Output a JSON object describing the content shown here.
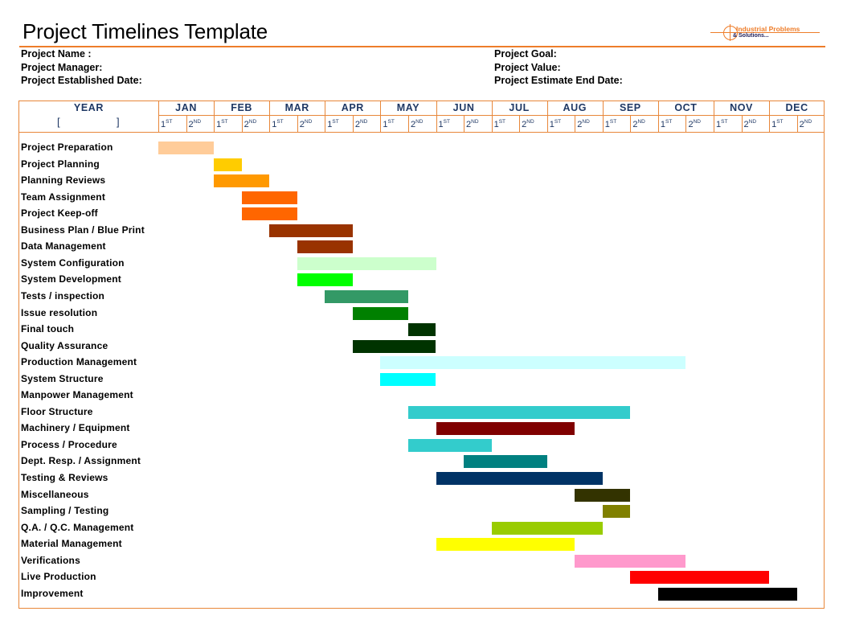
{
  "page": {
    "title": "Project Timelines Template",
    "logo_line1": "Industrial Problems",
    "logo_line2": "& Solutions..."
  },
  "info": {
    "left": [
      "Project Name :",
      "Project Manager:",
      "Project Established Date:"
    ],
    "right": [
      "Project Goal:",
      "Project Value:",
      "Project Estimate End Date:"
    ]
  },
  "header": {
    "year_label": "YEAR",
    "year_open": "[",
    "year_close": "]",
    "half_labels": [
      {
        "n": "1",
        "s": "ST"
      },
      {
        "n": "2",
        "s": "ND"
      }
    ]
  },
  "chart_data": {
    "type": "bar",
    "subtype": "gantt",
    "title": "Project Timelines Template",
    "categories": [
      "JAN",
      "FEB",
      "MAR",
      "APR",
      "MAY",
      "JUN",
      "JUL",
      "AUG",
      "SEP",
      "OCT",
      "NOV",
      "DEC"
    ],
    "unit": "half-month",
    "xlim": [
      0,
      24
    ],
    "grid": false,
    "tasks": [
      {
        "name": "Project Preparation",
        "start": 0,
        "end": 2,
        "color": "#ffcc99"
      },
      {
        "name": "Project Planning",
        "start": 2,
        "end": 3,
        "color": "#ffcc00"
      },
      {
        "name": "Planning Reviews",
        "start": 2,
        "end": 4,
        "color": "#ff9900"
      },
      {
        "name": "Team Assignment",
        "start": 3,
        "end": 5,
        "color": "#ff6600"
      },
      {
        "name": "Project Keep-off",
        "start": 3,
        "end": 5,
        "color": "#ff6600"
      },
      {
        "name": "Business Plan / Blue Print",
        "start": 4,
        "end": 7,
        "color": "#993300"
      },
      {
        "name": "Data Management",
        "start": 5,
        "end": 7,
        "color": "#993300"
      },
      {
        "name": "System Configuration",
        "start": 5,
        "end": 10,
        "color": "#ccffcc"
      },
      {
        "name": "System Development",
        "start": 5,
        "end": 7,
        "color": "#00ff00"
      },
      {
        "name": "Tests / inspection",
        "start": 6,
        "end": 9,
        "color": "#339966"
      },
      {
        "name": "Issue resolution",
        "start": 7,
        "end": 9,
        "color": "#008000"
      },
      {
        "name": "Final touch",
        "start": 9,
        "end": 10,
        "color": "#003300"
      },
      {
        "name": "Quality Assurance",
        "start": 7,
        "end": 10,
        "color": "#003300"
      },
      {
        "name": "Production Management",
        "start": 8,
        "end": 19,
        "color": "#ccffff"
      },
      {
        "name": "System Structure",
        "start": 8,
        "end": 10,
        "color": "#00ffff"
      },
      {
        "name": "Manpower Management",
        "start": null,
        "end": null,
        "color": ""
      },
      {
        "name": "Floor Structure",
        "start": 9,
        "end": 17,
        "color": "#33cccc"
      },
      {
        "name": "Machinery / Equipment",
        "start": 10,
        "end": 15,
        "color": "#800000"
      },
      {
        "name": "Process / Procedure",
        "start": 9,
        "end": 12,
        "color": "#33cccc"
      },
      {
        "name": "Dept. Resp. / Assignment",
        "start": 11,
        "end": 14,
        "color": "#008080"
      },
      {
        "name": "Testing & Reviews",
        "start": 10,
        "end": 16,
        "color": "#003366"
      },
      {
        "name": "Miscellaneous",
        "start": 15,
        "end": 17,
        "color": "#333300"
      },
      {
        "name": "Sampling / Testing",
        "start": 16,
        "end": 17,
        "color": "#808000"
      },
      {
        "name": "Q.A. / Q.C. Management",
        "start": 12,
        "end": 16,
        "color": "#99cc00"
      },
      {
        "name": "Material Management",
        "start": 10,
        "end": 15,
        "color": "#ffff00"
      },
      {
        "name": "Verifications",
        "start": 15,
        "end": 19,
        "color": "#ff99cc"
      },
      {
        "name": "Live Production",
        "start": 17,
        "end": 22,
        "color": "#ff0000"
      },
      {
        "name": "Improvement",
        "start": 18,
        "end": 23,
        "color": "#000000"
      }
    ]
  }
}
